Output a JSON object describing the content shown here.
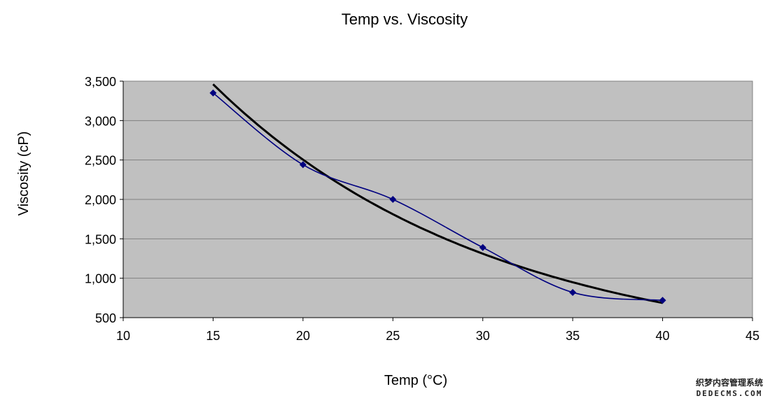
{
  "chart_data": {
    "type": "scatter",
    "title": "Temp vs. Viscosity",
    "xlabel": "Temp (°C)",
    "ylabel": "Viscosity (cP)",
    "xlim": [
      10,
      45
    ],
    "ylim": [
      500,
      3500
    ],
    "xticks": [
      10,
      15,
      20,
      25,
      30,
      35,
      40,
      45
    ],
    "yticks": [
      500,
      1000,
      1500,
      2000,
      2500,
      3000,
      3500
    ],
    "ytick_labels": [
      "500",
      "1,000",
      "1,500",
      "2,000",
      "2,500",
      "3,000",
      "3,500"
    ],
    "grid": "horizontal",
    "legend": "none",
    "plot_background": "#c0c0c0",
    "series": [
      {
        "x": [
          15,
          20,
          25,
          30,
          35,
          40
        ],
        "y": [
          3350,
          2440,
          2000,
          1390,
          820,
          720
        ],
        "color": "#000080",
        "marker": "diamond",
        "line": "smoothed"
      }
    ],
    "trendline": {
      "type": "exponential",
      "color": "#000000"
    }
  },
  "watermark": {
    "line1": "织梦内容管理系统",
    "line2": "DEDECMS.COM"
  }
}
